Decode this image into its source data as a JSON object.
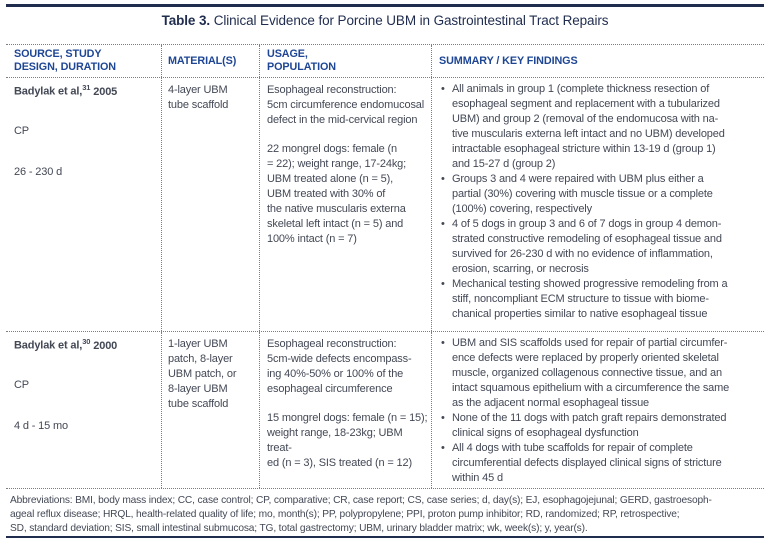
{
  "colors": {
    "rule_navy": "#1f2c4e",
    "header_blue": "#1e4694",
    "body_text": "#434855"
  },
  "title": {
    "prefix": "Table 3.",
    "text": " Clinical Evidence for Porcine UBM in Gastrointestinal Tract Repairs"
  },
  "table": {
    "headers": {
      "col1": "SOURCE, STUDY\nDESIGN, DURATION",
      "col2": "MATERIAL(S)",
      "col3": "USAGE,\nPOPULATION",
      "col4": "SUMMARY / KEY FINDINGS"
    },
    "rows": [
      {
        "source": "Badylak et al,",
        "ref": "31",
        "year": "2005",
        "design": "CP",
        "duration": "26 - 230 d",
        "materials": "4-layer UBM\ntube scaffold",
        "usage": "Esophageal reconstruction:\n5cm circumference endomucosal\ndefect in the mid-cervical region",
        "population": "22 mongrel dogs: female (n\n= 22); weight range, 17-24kg;\nUBM treated alone (n = 5),\nUBM treated with 30% of\nthe native muscularis externa\nskeletal left intact (n = 5) and\n100% intact (n = 7)",
        "findings": [
          "All animals in group 1 (complete thickness resection of\nesophageal segment and replacement with a tubularized\nUBM) and group 2 (removal of the endomucosa with na-\ntive muscularis externa left intact and no UBM) developed\nintractable esophageal stricture within 13-19 d (group 1)\nand 15-27 d (group 2)",
          "Groups 3 and 4 were repaired with UBM plus either a\npartial (30%) covering with muscle tissue or a complete\n(100%) covering, respectively",
          "4 of 5 dogs in group 3 and 6 of 7 dogs in group 4 demon-\nstrated constructive remodeling of esophageal tissue and\nsurvived for 26-230 d with no evidence of inflammation,\nerosion, scarring, or necrosis",
          "Mechanical testing showed progressive remodeling from a\nstiff, noncompliant ECM structure to tissue with biome-\nchanical properties similar to native esophageal tissue"
        ]
      },
      {
        "source": "Badylak et al,",
        "ref": "30",
        "year": "2000",
        "design": "CP",
        "duration": "4 d - 15 mo",
        "materials": "1-layer UBM\npatch, 8-layer\nUBM patch, or\n8-layer UBM\ntube scaffold",
        "usage": "Esophageal reconstruction:\n5cm-wide defects encompass-\ning 40%-50% or 100% of the\nesophageal circumference",
        "population": "15 mongrel dogs: female (n = 15);\nweight range, 18-23kg; UBM treat-\ned (n = 3), SIS treated (n = 12)",
        "findings": [
          "UBM and SIS scaffolds used for repair of partial circumfer-\nence defects were replaced by properly oriented skeletal\nmuscle, organized collagenous connective tissue, and an\nintact squamous epithelium with a circumference the same\nas the adjacent normal esophageal tissue",
          "None of the 11 dogs with patch graft repairs demonstrated\nclinical signs of esophageal dysfunction",
          "All 4 dogs with tube scaffolds for repair of complete\ncircumferential defects displayed clinical signs of stricture\nwithin 45 d"
        ]
      }
    ],
    "footnote": "Abbreviations: BMI, body mass index; CC, case control; CP, comparative; CR, case report; CS, case series; d, day(s); EJ, esophagojejunal; GERD, gastroesoph-\nageal reflux disease; HRQL, health-related quality of life; mo, month(s); PP, polypropylene; PPI, proton pump inhibitor; RD, randomized; RP, retrospective;\nSD, standard deviation; SIS, small intestinal submucosa; TG, total gastrectomy; UBM, urinary bladder matrix; wk, week(s); y, year(s)."
  }
}
